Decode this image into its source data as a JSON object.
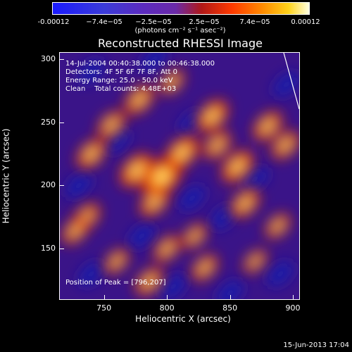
{
  "colorbar": {
    "ticks": [
      "-0.00012",
      "−7.4e−05",
      "−2.5e−05",
      "2.5e−05",
      "7.4e−05",
      "0.00012"
    ],
    "units": "(photons cm⁻² s⁻¹ asec⁻²)"
  },
  "chart_data": {
    "type": "heatmap",
    "title": "Reconstructed RHESSI Image",
    "xlabel": "Heliocentric X (arcsec)",
    "ylabel": "Heliocentric Y (arcsec)",
    "xlim": [
      715,
      905
    ],
    "ylim": [
      110,
      305
    ],
    "x_ticks": [
      "750",
      "800",
      "850",
      "900"
    ],
    "y_ticks": [
      "150",
      "200",
      "250",
      "300"
    ],
    "color_range": [
      -0.00012,
      0.00012
    ],
    "annotations": [
      "14-Jul-2004 00:40:38.000 to 00:46:38.000",
      "Detectors: 4F 5F 6F 7F 8F, Att 0",
      "Energy Range: 25.0 - 50.0 keV",
      "Clean    Total counts: 4.48E+03"
    ],
    "peak_label": "Position of Peak = [796,207]",
    "peak": [
      796,
      207
    ],
    "sources": [
      {
        "x": 796,
        "y": 207,
        "intensity": 1.0
      },
      {
        "x": 776,
        "y": 212,
        "intensity": 0.75
      },
      {
        "x": 790,
        "y": 187,
        "intensity": 0.6
      },
      {
        "x": 812,
        "y": 226,
        "intensity": 0.75
      },
      {
        "x": 836,
        "y": 255,
        "intensity": 0.7
      },
      {
        "x": 840,
        "y": 232,
        "intensity": 0.55
      },
      {
        "x": 856,
        "y": 215,
        "intensity": 0.7
      },
      {
        "x": 862,
        "y": 186,
        "intensity": 0.6
      },
      {
        "x": 880,
        "y": 247,
        "intensity": 0.6
      },
      {
        "x": 894,
        "y": 232,
        "intensity": 0.55
      },
      {
        "x": 888,
        "y": 168,
        "intensity": 0.45
      },
      {
        "x": 822,
        "y": 160,
        "intensity": 0.45
      },
      {
        "x": 830,
        "y": 135,
        "intensity": 0.5
      },
      {
        "x": 800,
        "y": 150,
        "intensity": 0.5
      },
      {
        "x": 786,
        "y": 124,
        "intensity": 0.55
      },
      {
        "x": 760,
        "y": 140,
        "intensity": 0.45
      },
      {
        "x": 736,
        "y": 175,
        "intensity": 0.55
      },
      {
        "x": 727,
        "y": 164,
        "intensity": 0.5
      },
      {
        "x": 740,
        "y": 225,
        "intensity": 0.6
      },
      {
        "x": 756,
        "y": 248,
        "intensity": 0.55
      },
      {
        "x": 778,
        "y": 268,
        "intensity": 0.6
      },
      {
        "x": 804,
        "y": 282,
        "intensity": 0.45
      },
      {
        "x": 870,
        "y": 140,
        "intensity": 0.4
      }
    ]
  },
  "footer": {
    "date": "15-Jun-2013 17:04"
  }
}
